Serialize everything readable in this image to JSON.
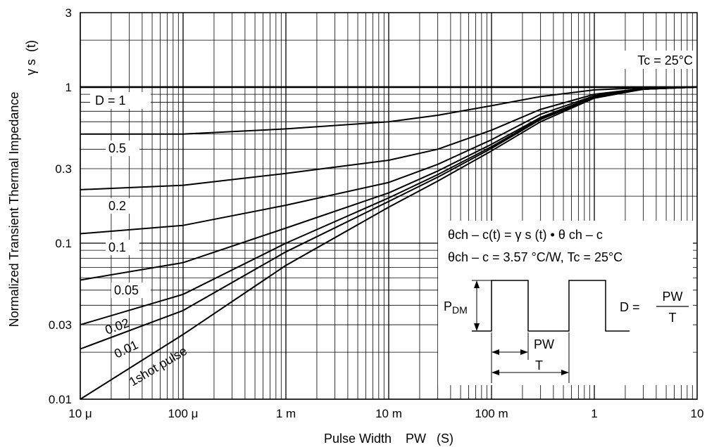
{
  "chart_data": {
    "type": "line",
    "title": "",
    "xlabel": "Pulse Width    PW   (S)",
    "ylabel_line1": "Normalized Transient Thermal Impedance",
    "ylabel_line2": "γ s  (t)",
    "x_scale": "log",
    "y_scale": "log",
    "xlim": [
      1e-05,
      10
    ],
    "ylim": [
      0.01,
      3
    ],
    "grid": true,
    "x_ticks": [
      {
        "value": 1e-05,
        "label": "10 μ"
      },
      {
        "value": 0.0001,
        "label": "100 μ"
      },
      {
        "value": 0.001,
        "label": "1 m"
      },
      {
        "value": 0.01,
        "label": "10 m"
      },
      {
        "value": 0.1,
        "label": "100 m"
      },
      {
        "value": 1,
        "label": "1"
      },
      {
        "value": 10,
        "label": "10"
      }
    ],
    "y_ticks": [
      {
        "value": 0.01,
        "label": "0.01"
      },
      {
        "value": 0.03,
        "label": "0.03"
      },
      {
        "value": 0.1,
        "label": "0.1"
      },
      {
        "value": 0.3,
        "label": "0.3"
      },
      {
        "value": 1,
        "label": "1"
      },
      {
        "value": 3,
        "label": "3"
      }
    ],
    "condition_label": "Tc = 25°C",
    "series": [
      {
        "name": "D = 1",
        "x": [
          1e-05,
          10
        ],
        "y": [
          1.0,
          1.0
        ]
      },
      {
        "name": "0.5",
        "x": [
          1e-05,
          0.0001,
          0.001,
          0.01,
          0.03,
          0.1,
          0.3,
          1,
          3,
          10
        ],
        "y": [
          0.5,
          0.5,
          0.54,
          0.6,
          0.66,
          0.76,
          0.87,
          0.96,
          0.99,
          1.0
        ]
      },
      {
        "name": "0.2",
        "x": [
          1e-05,
          0.0001,
          0.001,
          0.01,
          0.03,
          0.1,
          0.3,
          1,
          3,
          10
        ],
        "y": [
          0.22,
          0.235,
          0.28,
          0.34,
          0.4,
          0.53,
          0.72,
          0.9,
          0.98,
          1.0
        ]
      },
      {
        "name": "0.1",
        "x": [
          1e-05,
          0.0001,
          0.001,
          0.01,
          0.03,
          0.1,
          0.3,
          1,
          3,
          10
        ],
        "y": [
          0.115,
          0.13,
          0.175,
          0.245,
          0.32,
          0.46,
          0.67,
          0.88,
          0.97,
          1.0
        ]
      },
      {
        "name": "0.05",
        "x": [
          1e-05,
          0.0001,
          0.001,
          0.01,
          0.03,
          0.1,
          0.3,
          1,
          3,
          10
        ],
        "y": [
          0.058,
          0.075,
          0.125,
          0.21,
          0.29,
          0.43,
          0.64,
          0.87,
          0.97,
          1.0
        ]
      },
      {
        "name": "0.02",
        "x": [
          1e-05,
          0.0001,
          0.001,
          0.01,
          0.03,
          0.1,
          0.3,
          1,
          3,
          10
        ],
        "y": [
          0.03,
          0.047,
          0.1,
          0.195,
          0.275,
          0.415,
          0.63,
          0.86,
          0.97,
          1.0
        ]
      },
      {
        "name": "0.01",
        "x": [
          1e-05,
          0.0001,
          0.001,
          0.01,
          0.03,
          0.1,
          0.3,
          1,
          3,
          10
        ],
        "y": [
          0.021,
          0.037,
          0.088,
          0.185,
          0.265,
          0.405,
          0.62,
          0.855,
          0.97,
          1.0
        ]
      },
      {
        "name": "1shot pulse",
        "x": [
          1e-05,
          0.0001,
          0.001,
          0.01,
          0.03,
          0.1,
          0.3,
          1,
          3,
          10
        ],
        "y": [
          0.01,
          0.026,
          0.072,
          0.17,
          0.25,
          0.39,
          0.6,
          0.85,
          0.97,
          1.0
        ]
      }
    ],
    "inset": {
      "formula1": "θch – c(t) = γ s (t) • θ ch – c",
      "formula2": "θch – c = 3.57 °C/W, Tc = 25°C",
      "pdm_label": "P",
      "pdm_sub": "DM",
      "pw_label": "PW",
      "t_label": "T",
      "duty_lhs": "D = ",
      "duty_num": "PW",
      "duty_den": "T"
    }
  }
}
